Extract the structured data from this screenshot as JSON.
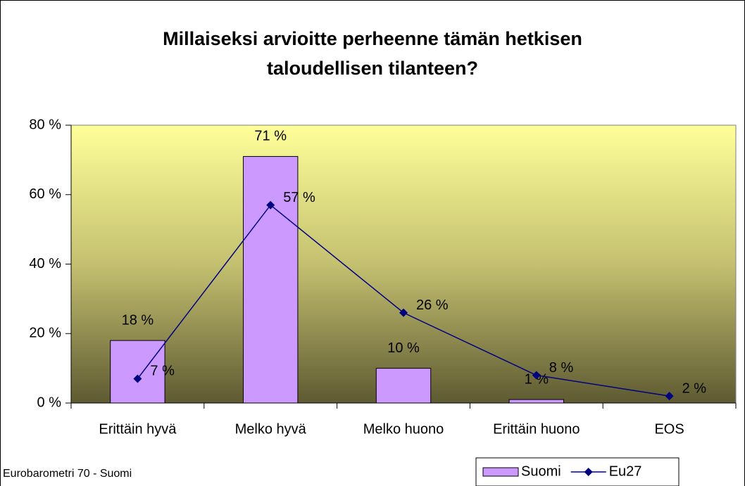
{
  "chart_data": {
    "type": "bar+line",
    "title": [
      "Millaiseksi arvioitte perheenne tämän hetkisen",
      "taloudellisen tilanteen?"
    ],
    "source": "Eurobarometri 70 - Suomi",
    "categories": [
      "Erittäin hyvä",
      "Melko hyvä",
      "Melko huono",
      "Erittäin huono",
      "EOS"
    ],
    "series": [
      {
        "name": "Suomi",
        "type": "bar",
        "color": "#cc99ff",
        "values": [
          18,
          71,
          10,
          1,
          null
        ],
        "value_labels": [
          "18 %",
          "71 %",
          "10 %",
          "1 %",
          null
        ]
      },
      {
        "name": "Eu27",
        "type": "line",
        "color": "#000080",
        "values": [
          7,
          57,
          26,
          8,
          2
        ],
        "value_labels": [
          "7 %",
          "57 %",
          "26 %",
          "8 %",
          "2 %"
        ]
      }
    ],
    "ylim": [
      0,
      80
    ],
    "yticks": [
      {
        "value": 0,
        "label": "0 %"
      },
      {
        "value": 20,
        "label": "20 %"
      },
      {
        "value": 40,
        "label": "40 %"
      },
      {
        "value": 60,
        "label": "60 %"
      },
      {
        "value": 80,
        "label": "80 %"
      }
    ],
    "legend": "bottom-right"
  }
}
